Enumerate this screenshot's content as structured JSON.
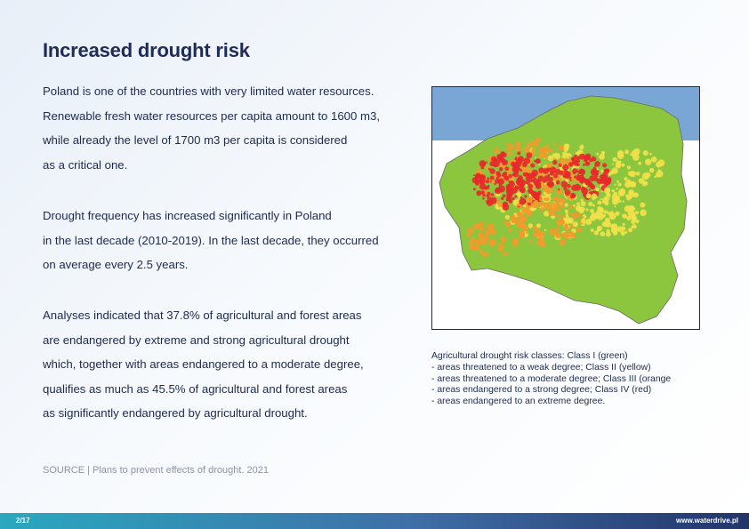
{
  "title": "Increased drought risk",
  "paragraphs": [
    {
      "lines": [
        "Poland is one of the countries with very limited water resources.",
        "Renewable fresh water resources per capita amount to 1600 m3,",
        "while already the level of 1700 m3 per capita is considered",
        "as a critical one."
      ]
    },
    {
      "lines": [
        "Drought frequency has increased significantly in Poland",
        "in the last decade (2010-2019). In the last decade, they occurred",
        "on average every 2.5 years."
      ]
    },
    {
      "lines": [
        "Analyses indicated that 37.8% of agricultural and forest areas",
        "are endangered by extreme and strong agricultural drought",
        "which, together with areas endangered to a moderate degree,",
        "qualifies as much as 45.5% of agricultural and forest areas",
        "as significantly endangered by agricultural drought."
      ]
    }
  ],
  "source": "SOURCE | Plans to prevent effects of drought. 2021",
  "map": {
    "colors": {
      "sea": "#7aa6d6",
      "class_I": "#8cc63f",
      "class_II": "#f2e14a",
      "class_III": "#f39a2b",
      "class_IV": "#e8282b"
    }
  },
  "caption": {
    "lines": [
      "Agricultural drought risk classes: Class I (green)",
      "- areas threatened to a weak degree; Class II (yellow)",
      "- areas threatened to a moderate degree; Class III (orange",
      "- areas endangered to a strong degree; Class IV (red)",
      "- areas endangered to an extreme degree."
    ]
  },
  "footer": {
    "page": "2/17",
    "url": "www.waterdrive.pl"
  }
}
